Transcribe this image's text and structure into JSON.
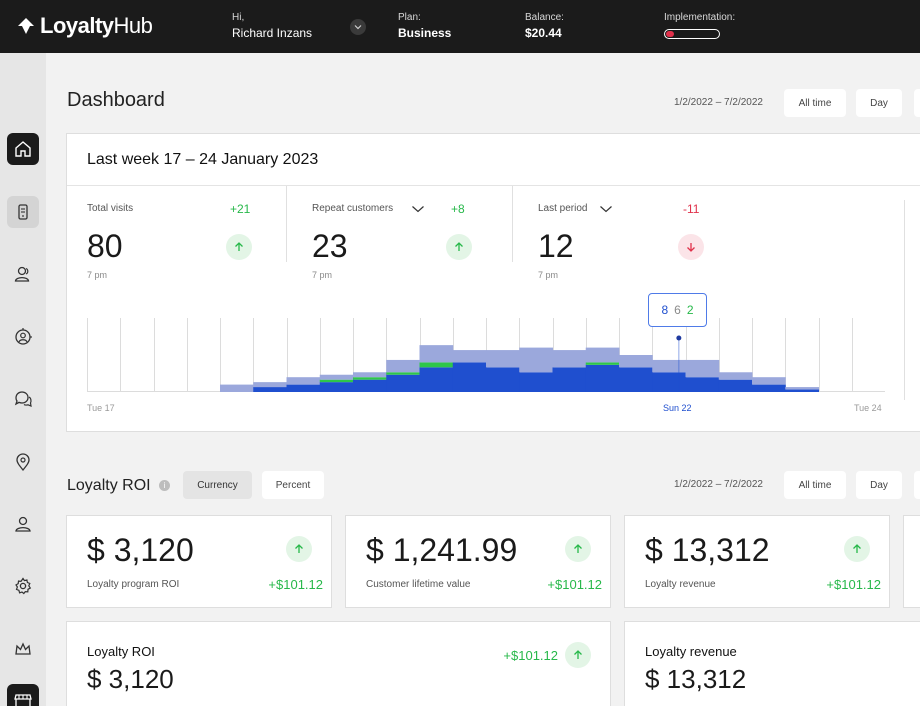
{
  "brand": {
    "name_bold": "Loyalty",
    "name_thin": "Hub"
  },
  "topbar": {
    "greeting": "Hi,",
    "user_name": "Richard Inzans",
    "plan_label": "Plan:",
    "plan_value": "Business",
    "balance_label": "Balance:",
    "balance_value": "$20.44",
    "implementation_label": "Implementation:",
    "implementation_progress": 0.15
  },
  "sidebar": {
    "items": [
      {
        "name": "home-icon",
        "active": true
      },
      {
        "name": "mobile-icon",
        "active": false,
        "soft": true
      },
      {
        "name": "users-icon",
        "active": false
      },
      {
        "name": "user-target-icon",
        "active": false
      },
      {
        "name": "chat-icon",
        "active": false
      },
      {
        "name": "location-pin-icon",
        "active": false
      },
      {
        "name": "user-icon",
        "active": false
      },
      {
        "name": "gear-icon",
        "active": false
      },
      {
        "name": "crown-icon",
        "active": false
      },
      {
        "name": "store-icon",
        "active": true
      }
    ]
  },
  "dashboard": {
    "title": "Dashboard",
    "date_range": "1/2/2022 – 7/2/2022",
    "filter_all_time": "All time",
    "filter_day": "Day"
  },
  "week_card": {
    "title": "Last week 17 – 24 January 2023",
    "stats": [
      {
        "label": "Total visits",
        "delta": "+21",
        "value": "80",
        "time": "7 pm",
        "trend": "up",
        "has_dropdown": false
      },
      {
        "label": "Repeat customers",
        "delta": "+8",
        "value": "23",
        "time": "7 pm",
        "trend": "up",
        "has_dropdown": true
      },
      {
        "label": "Last period",
        "delta": "-11",
        "value": "12",
        "time": "7 pm",
        "trend": "down",
        "has_dropdown": true
      }
    ],
    "tooltip": {
      "a": "8",
      "b": "6",
      "c": "2"
    },
    "axis": {
      "start": "Tue 17",
      "middle": "Sun 22",
      "end": "Tue 24"
    }
  },
  "chart_data": {
    "type": "area",
    "x": [
      "1",
      "2",
      "3",
      "4",
      "5",
      "6",
      "7",
      "8",
      "9",
      "10",
      "11",
      "12",
      "13",
      "14",
      "15",
      "16",
      "17",
      "18",
      "19",
      "20",
      "21",
      "22",
      "23",
      "24"
    ],
    "series": [
      {
        "name": "blue",
        "values": [
          0,
          0,
          0,
          0,
          0,
          2,
          3,
          4,
          5,
          7,
          10,
          12,
          10,
          8,
          10,
          11,
          10,
          8,
          6,
          5,
          3,
          1,
          0,
          0
        ]
      },
      {
        "name": "green",
        "values": [
          0,
          0,
          0,
          0,
          0,
          0,
          0,
          1,
          1,
          1,
          2,
          0,
          0,
          0,
          0,
          1,
          0,
          0,
          0,
          0,
          0,
          0,
          0,
          0
        ]
      },
      {
        "name": "light",
        "values": [
          0,
          0,
          0,
          0,
          3,
          2,
          3,
          2,
          2,
          5,
          7,
          5,
          7,
          10,
          7,
          6,
          5,
          5,
          7,
          3,
          3,
          1,
          0,
          0
        ]
      }
    ],
    "ylim": [
      0,
      30
    ]
  },
  "roi": {
    "title": "Loyalty ROI",
    "info": "i",
    "tab_currency": "Currency",
    "tab_percent": "Percent",
    "date_range": "1/2/2022 – 7/2/2022",
    "filter_all_time": "All time",
    "filter_day": "Day",
    "metrics": [
      {
        "value": "$ 3,120",
        "label": "Loyalty program ROI",
        "delta": "+$101.12"
      },
      {
        "value": "$ 1,241.99",
        "label": "Customer lifetime value",
        "delta": "+$101.12"
      },
      {
        "value": "$ 13,312",
        "label": "Loyalty revenue",
        "delta": "+$101.12"
      }
    ],
    "bottom": [
      {
        "title": "Loyalty ROI",
        "value": "$ 3,120",
        "delta": "+$101.12"
      },
      {
        "title": "Loyalty revenue",
        "value": "$ 13,312"
      }
    ]
  }
}
